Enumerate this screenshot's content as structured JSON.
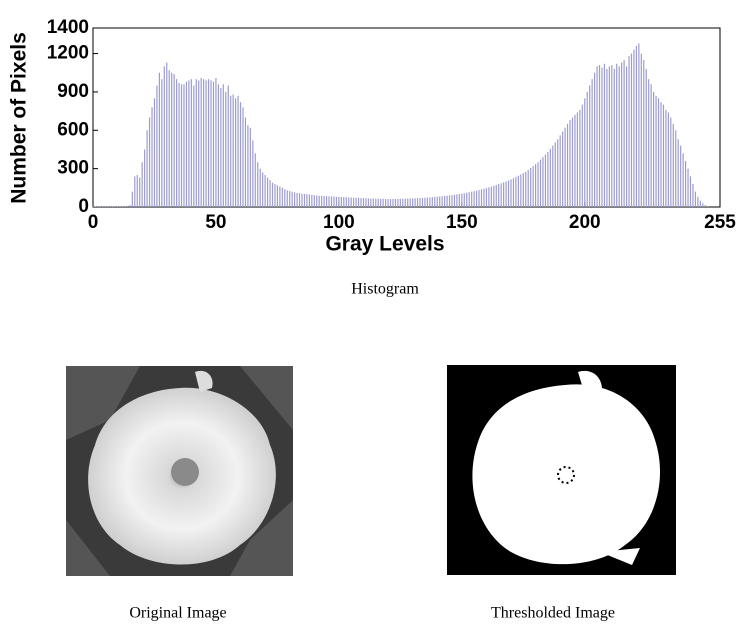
{
  "chart_data": {
    "type": "bar",
    "title": "Histogram",
    "xlabel": "Gray Levels",
    "ylabel": "Number of Pixels",
    "color": "#9c9cd2",
    "xlim": [
      0,
      255
    ],
    "xticks": [
      0,
      50,
      100,
      150,
      200,
      255
    ],
    "ylim": [
      0,
      1400
    ],
    "yticks": [
      0,
      300,
      600,
      900,
      1200,
      1400
    ],
    "x": [
      0,
      1,
      2,
      3,
      4,
      5,
      6,
      7,
      8,
      9,
      10,
      11,
      12,
      13,
      14,
      15,
      16,
      17,
      18,
      19,
      20,
      21,
      22,
      23,
      24,
      25,
      26,
      27,
      28,
      29,
      30,
      31,
      32,
      33,
      34,
      35,
      36,
      37,
      38,
      39,
      40,
      41,
      42,
      43,
      44,
      45,
      46,
      47,
      48,
      49,
      50,
      51,
      52,
      53,
      54,
      55,
      56,
      57,
      58,
      59,
      60,
      61,
      62,
      63,
      64,
      65,
      66,
      67,
      68,
      69,
      70,
      71,
      72,
      73,
      74,
      75,
      76,
      77,
      78,
      79,
      80,
      81,
      82,
      83,
      84,
      85,
      86,
      87,
      88,
      89,
      90,
      91,
      92,
      93,
      94,
      95,
      96,
      97,
      98,
      99,
      100,
      101,
      102,
      103,
      104,
      105,
      106,
      107,
      108,
      109,
      110,
      111,
      112,
      113,
      114,
      115,
      116,
      117,
      118,
      119,
      120,
      121,
      122,
      123,
      124,
      125,
      126,
      127,
      128,
      129,
      130,
      131,
      132,
      133,
      134,
      135,
      136,
      137,
      138,
      139,
      140,
      141,
      142,
      143,
      144,
      145,
      146,
      147,
      148,
      149,
      150,
      151,
      152,
      153,
      154,
      155,
      156,
      157,
      158,
      159,
      160,
      161,
      162,
      163,
      164,
      165,
      166,
      167,
      168,
      169,
      170,
      171,
      172,
      173,
      174,
      175,
      176,
      177,
      178,
      179,
      180,
      181,
      182,
      183,
      184,
      185,
      186,
      187,
      188,
      189,
      190,
      191,
      192,
      193,
      194,
      195,
      196,
      197,
      198,
      199,
      200,
      201,
      202,
      203,
      204,
      205,
      206,
      207,
      208,
      209,
      210,
      211,
      212,
      213,
      214,
      215,
      216,
      217,
      218,
      219,
      220,
      221,
      222,
      223,
      224,
      225,
      226,
      227,
      228,
      229,
      230,
      231,
      232,
      233,
      234,
      235,
      236,
      237,
      238,
      239,
      240,
      241,
      242,
      243,
      244,
      245,
      246,
      247,
      248,
      249,
      250,
      251,
      252,
      253,
      254,
      255
    ],
    "values": [
      5,
      5,
      5,
      5,
      5,
      5,
      5,
      5,
      5,
      5,
      5,
      5,
      5,
      5,
      8,
      15,
      120,
      240,
      250,
      230,
      350,
      450,
      600,
      700,
      780,
      850,
      950,
      1050,
      1000,
      1100,
      1130,
      1070,
      1050,
      1040,
      1000,
      970,
      960,
      960,
      980,
      990,
      1000,
      950,
      1000,
      990,
      1010,
      1000,
      990,
      1000,
      990,
      980,
      1010,
      960,
      930,
      960,
      900,
      950,
      870,
      880,
      850,
      870,
      820,
      780,
      700,
      640,
      620,
      520,
      420,
      350,
      300,
      270,
      250,
      230,
      210,
      190,
      180,
      170,
      160,
      150,
      140,
      130,
      125,
      120,
      115,
      110,
      108,
      105,
      102,
      100,
      98,
      95,
      92,
      90,
      88,
      88,
      86,
      85,
      84,
      83,
      82,
      80,
      80,
      78,
      78,
      76,
      75,
      74,
      73,
      72,
      72,
      70,
      70,
      68,
      68,
      66,
      66,
      65,
      65,
      64,
      64,
      63,
      62,
      62,
      62,
      63,
      63,
      64,
      64,
      65,
      66,
      66,
      67,
      68,
      69,
      70,
      71,
      72,
      74,
      75,
      77,
      79,
      80,
      82,
      84,
      86,
      88,
      90,
      93,
      96,
      99,
      102,
      105,
      108,
      112,
      116,
      120,
      124,
      128,
      133,
      138,
      143,
      148,
      154,
      160,
      166,
      172,
      178,
      185,
      192,
      200,
      208,
      216,
      225,
      235,
      245,
      255,
      265,
      275,
      290,
      305,
      320,
      335,
      350,
      370,
      390,
      410,
      430,
      455,
      480,
      505,
      530,
      560,
      590,
      620,
      650,
      680,
      700,
      720,
      740,
      760,
      800,
      850,
      900,
      950,
      1000,
      1050,
      1100,
      1110,
      1090,
      1120,
      1080,
      1100,
      1110,
      1080,
      1120,
      1100,
      1130,
      1150,
      1100,
      1180,
      1200,
      1230,
      1260,
      1280,
      1200,
      1150,
      1080,
      1000,
      960,
      900,
      870,
      850,
      820,
      800,
      760,
      740,
      700,
      650,
      600,
      530,
      480,
      420,
      360,
      300,
      240,
      180,
      120,
      80,
      50,
      30,
      15,
      8,
      0,
      0,
      0,
      0,
      0
    ]
  },
  "images": [
    {
      "caption": "Original Image"
    },
    {
      "caption": "Thresholded Image"
    }
  ]
}
